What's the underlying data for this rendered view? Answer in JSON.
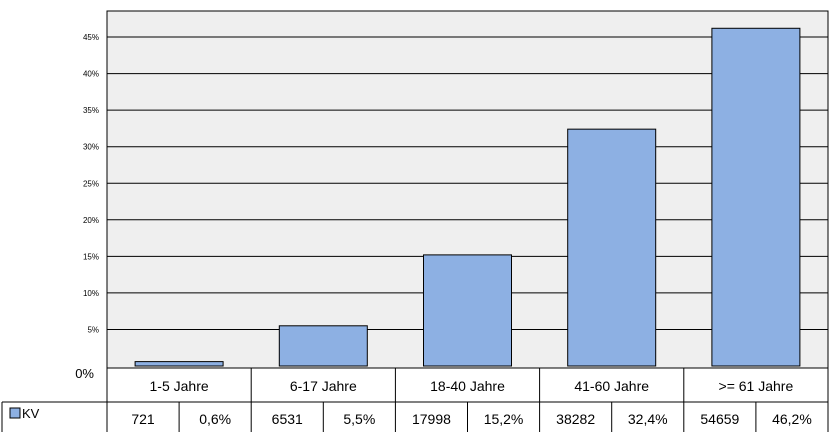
{
  "chart_data": {
    "type": "bar",
    "title": "",
    "xlabel": "",
    "ylabel": "",
    "ylim": [
      0,
      50
    ],
    "yticks": [
      5,
      10,
      15,
      20,
      25,
      30,
      35,
      40,
      45
    ],
    "ytick_labels": [
      "5%",
      "10%",
      "15%",
      "20%",
      "25%",
      "30%",
      "35%",
      "40%",
      "45%"
    ],
    "zero_label": "0%",
    "grid": true,
    "categories": [
      "1-5 Jahre",
      "6-17 Jahre",
      "18-40 Jahre",
      "41-60 Jahre",
      ">= 61 Jahre"
    ],
    "series": [
      {
        "name": "KV",
        "color": "#8DB0E3",
        "values": [
          0.6,
          5.5,
          15.2,
          32.4,
          46.2
        ],
        "counts": [
          "721",
          "6531",
          "17998",
          "38282",
          "54659"
        ],
        "percent_labels": [
          "0,6%",
          "5,5%",
          "15,2%",
          "32,4%",
          "46,2%"
        ]
      }
    ],
    "colors": {
      "plot_background": "#EFEFEF",
      "bar_fill": "#8DB0E3",
      "bar_stroke": "#000000",
      "grid": "#000000"
    }
  }
}
